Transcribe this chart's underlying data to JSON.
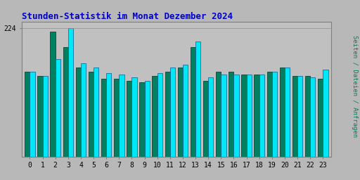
{
  "title": "Stunden-Statistik im Monat Dezember 2024",
  "ylabel": "Seiten / Dateien / Anfragen",
  "xlabel_ticks": [
    0,
    1,
    2,
    3,
    4,
    5,
    6,
    7,
    8,
    9,
    10,
    11,
    12,
    13,
    14,
    15,
    16,
    17,
    18,
    19,
    20,
    21,
    22,
    23
  ],
  "ylim_max": 235,
  "ytick_label": 224,
  "bar1_color": "#008060",
  "bar2_color": "#00e8f8",
  "bar1_edge": "#003020",
  "bar2_edge": "#006090",
  "background_color": "#b8b8b8",
  "plot_bg": "#c0c0c0",
  "title_color": "#0000cc",
  "ylabel_color": "#008060",
  "bar_width": 0.4,
  "values1": [
    148,
    140,
    218,
    190,
    155,
    148,
    135,
    135,
    132,
    130,
    140,
    148,
    155,
    190,
    132,
    148,
    148,
    143,
    143,
    148,
    155,
    140,
    140,
    135
  ],
  "values2": [
    148,
    140,
    170,
    224,
    162,
    155,
    145,
    143,
    138,
    132,
    145,
    155,
    160,
    200,
    138,
    143,
    143,
    143,
    143,
    148,
    155,
    140,
    138,
    152
  ]
}
